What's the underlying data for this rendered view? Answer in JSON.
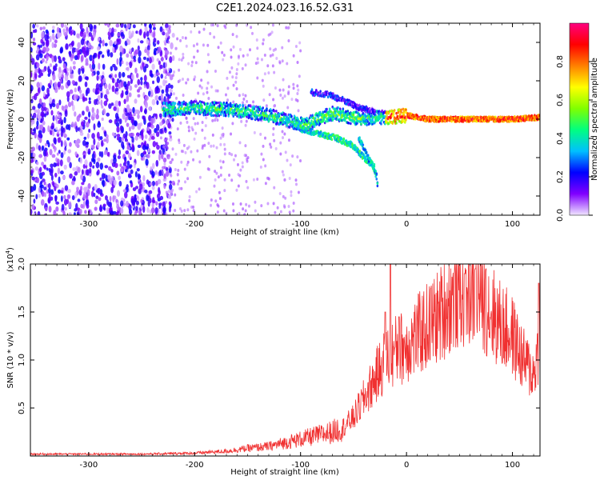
{
  "title": "C2E1.2024.023.16.52.G31",
  "chart_data": [
    {
      "type": "heatmap",
      "xlabel": "Height of straight line (km)",
      "ylabel": "Frequency (Hz)",
      "xlim": [
        -355,
        126
      ],
      "ylim": [
        -50,
        50
      ],
      "xticks": [
        -300,
        -200,
        -100,
        0,
        100
      ],
      "yticks": [
        -40,
        -20,
        0,
        20,
        40
      ],
      "colorbar": {
        "label": "Normalized spectral amplitude",
        "range": [
          0,
          1
        ],
        "ticks": [
          "0.0",
          "0.2",
          "0.4",
          "0.6",
          "0.8"
        ],
        "colors": [
          "#f0e6ff",
          "#8000ff",
          "#0000ff",
          "#00c0ff",
          "#00ff80",
          "#80ff00",
          "#ffff00",
          "#ff8000",
          "#ff0000",
          "#ff0080"
        ]
      },
      "features": {
        "noise_region_x": [
          -355,
          -230
        ],
        "main_trace": [
          [
            -230,
            5
          ],
          [
            -200,
            6
          ],
          [
            -170,
            5
          ],
          [
            -150,
            4
          ],
          [
            -130,
            2
          ],
          [
            -110,
            -1
          ],
          [
            -95,
            -3
          ],
          [
            -85,
            0
          ],
          [
            -70,
            3
          ],
          [
            -60,
            2
          ],
          [
            -45,
            0
          ],
          [
            -30,
            1
          ],
          [
            -15,
            1
          ],
          [
            0,
            2
          ],
          [
            20,
            0
          ],
          [
            60,
            0
          ],
          [
            100,
            0
          ],
          [
            126,
            1
          ]
        ],
        "lower_branch": [
          [
            -100,
            -5
          ],
          [
            -80,
            -8
          ],
          [
            -65,
            -10
          ],
          [
            -50,
            -14
          ],
          [
            -40,
            -20
          ],
          [
            -30,
            -25
          ]
        ],
        "upper_branch": [
          [
            -90,
            14
          ],
          [
            -75,
            13
          ],
          [
            -60,
            10
          ],
          [
            -45,
            6
          ],
          [
            -30,
            4
          ]
        ],
        "hook": [
          [
            -45,
            -10
          ],
          [
            -38,
            -18
          ],
          [
            -32,
            -24
          ],
          [
            -28,
            -30
          ],
          [
            -27,
            -36
          ]
        ]
      }
    },
    {
      "type": "line",
      "xlabel": "Height of straight line (km)",
      "ylabel": "SNR (10 * v/v)",
      "y_multiplier": "(x10",
      "y_multiplier_exp": "4",
      "xlim": [
        -355,
        126
      ],
      "ylim": [
        0,
        2.0
      ],
      "xticks": [
        -300,
        -200,
        -100,
        0,
        100
      ],
      "yticks": [
        0.5,
        1.0,
        1.5,
        2.0
      ],
      "line_color": "#f03030",
      "series": [
        {
          "envelope": [
            [
              -355,
              0.02
            ],
            [
              -300,
              0.02
            ],
            [
              -250,
              0.02
            ],
            [
              -200,
              0.03
            ],
            [
              -170,
              0.05
            ],
            [
              -150,
              0.08
            ],
            [
              -130,
              0.1
            ],
            [
              -110,
              0.15
            ],
            [
              -90,
              0.2
            ],
            [
              -70,
              0.25
            ],
            [
              -60,
              0.3
            ],
            [
              -50,
              0.4
            ],
            [
              -40,
              0.6
            ],
            [
              -30,
              0.8
            ],
            [
              -20,
              1.0
            ],
            [
              -10,
              1.1
            ],
            [
              0,
              1.15
            ],
            [
              10,
              1.25
            ],
            [
              20,
              1.35
            ],
            [
              30,
              1.45
            ],
            [
              40,
              1.6
            ],
            [
              50,
              1.7
            ],
            [
              60,
              1.75
            ],
            [
              70,
              1.7
            ],
            [
              80,
              1.5
            ],
            [
              90,
              1.35
            ],
            [
              100,
              1.25
            ],
            [
              110,
              1.0
            ],
            [
              120,
              0.85
            ],
            [
              126,
              1.2
            ]
          ],
          "peaks": [
            [
              -15,
              2.0
            ],
            [
              -20,
              1.5
            ],
            [
              -7,
              1.45
            ],
            [
              65,
              1.95
            ],
            [
              75,
              1.95
            ],
            [
              55,
              1.9
            ],
            [
              125,
              1.8
            ]
          ]
        }
      ]
    }
  ]
}
